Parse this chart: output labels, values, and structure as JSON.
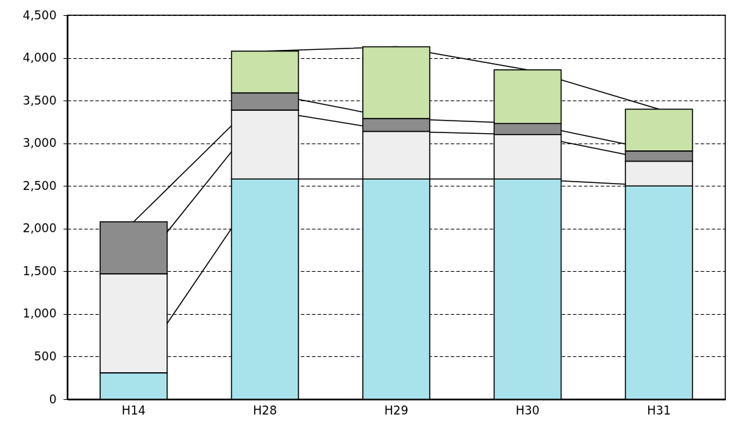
{
  "chart_data": {
    "type": "bar",
    "stacked": true,
    "categories": [
      "H14",
      "H28",
      "H29",
      "H30",
      "H31"
    ],
    "series": [
      {
        "color": "#a8e2ea",
        "values": [
          310,
          2580,
          2580,
          2580,
          2500
        ]
      },
      {
        "color": "#eeeeee",
        "values": [
          1160,
          810,
          560,
          520,
          290
        ]
      },
      {
        "color": "#8c8c8c",
        "values": [
          610,
          200,
          150,
          130,
          120
        ]
      },
      {
        "color": "#c8e2a8",
        "values": [
          null,
          490,
          840,
          630,
          490
        ]
      }
    ],
    "ylim": [
      0,
      4500
    ],
    "yticks": [
      {
        "value": 0,
        "label": "0"
      },
      {
        "value": 500,
        "label": "500"
      },
      {
        "value": 1000,
        "label": "1,000"
      },
      {
        "value": 1500,
        "label": "1,500"
      },
      {
        "value": 2000,
        "label": "2,000"
      },
      {
        "value": 2500,
        "label": "2,500"
      },
      {
        "value": 3000,
        "label": "3,000"
      },
      {
        "value": 3500,
        "label": "3,500"
      },
      {
        "value": 4000,
        "label": "4,000"
      },
      {
        "value": 4500,
        "label": "4,500"
      }
    ],
    "grid": "y",
    "legend": false
  }
}
